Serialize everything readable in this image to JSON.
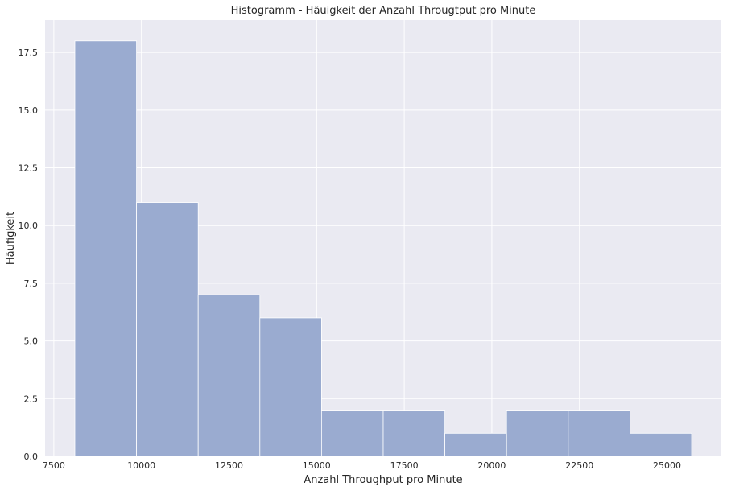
{
  "chart_data": {
    "type": "bar",
    "title": "Histogramm - Häuigkeit der Anzahl Througtput pro Minute",
    "xlabel": "Anzahl Throughput pro Minute",
    "ylabel": "Häufigkeit",
    "xlim": [
      7250,
      26550
    ],
    "ylim": [
      0,
      18.9
    ],
    "xticks": [
      7500,
      10000,
      12500,
      15000,
      17500,
      20000,
      22500,
      25000
    ],
    "yticks": [
      0.0,
      2.5,
      5.0,
      7.5,
      10.0,
      12.5,
      15.0,
      17.5
    ],
    "bins": [
      {
        "start": 8100,
        "end": 9860,
        "count": 18
      },
      {
        "start": 9860,
        "end": 11620,
        "count": 11
      },
      {
        "start": 11620,
        "end": 13380,
        "count": 7
      },
      {
        "start": 13380,
        "end": 15140,
        "count": 6
      },
      {
        "start": 15140,
        "end": 16900,
        "count": 2
      },
      {
        "start": 16900,
        "end": 18660,
        "count": 2
      },
      {
        "start": 18660,
        "end": 20420,
        "count": 1
      },
      {
        "start": 20420,
        "end": 22180,
        "count": 2
      },
      {
        "start": 22180,
        "end": 23940,
        "count": 2
      },
      {
        "start": 23940,
        "end": 25700,
        "count": 1
      }
    ],
    "grid": true,
    "colors": {
      "bar": "#9aabd0",
      "background": "#eaeaf2",
      "grid": "#ffffff"
    }
  }
}
